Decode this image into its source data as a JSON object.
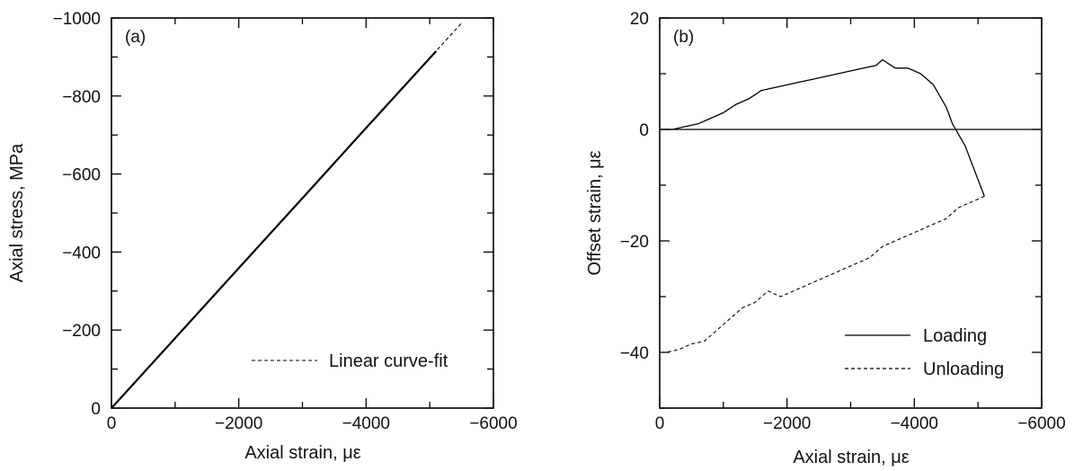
{
  "chart_data": [
    {
      "type": "line",
      "panel_label": "(a)",
      "xlabel": "Axial strain, με",
      "ylabel": "Axial stress, MPa",
      "xlim": [
        0,
        -6000
      ],
      "ylim": [
        0,
        -1000
      ],
      "x_ticks": [
        0,
        -2000,
        -4000,
        -6000
      ],
      "x_tick_labels": [
        "0",
        "−2000",
        "−4000",
        "−6000"
      ],
      "y_ticks": [
        0,
        -200,
        -400,
        -600,
        -800,
        -1000
      ],
      "y_tick_labels": [
        "0",
        "−200",
        "−400",
        "−600",
        "−800",
        "−1000"
      ],
      "grid": false,
      "legend_position": "bottom-right",
      "series": [
        {
          "style": "solid",
          "x": [
            0,
            -1000,
            -2000,
            -3000,
            -4000,
            -5100
          ],
          "y": [
            0,
            -179,
            -359,
            -538,
            -718,
            -915
          ]
        },
        {
          "name": "Linear curve-fit",
          "style": "dashed",
          "x": [
            0,
            -5500
          ],
          "y": [
            0,
            -987
          ]
        }
      ]
    },
    {
      "type": "line",
      "panel_label": "(b)",
      "xlabel": "Axial strain, με",
      "ylabel": "Offset strain, με",
      "xlim": [
        0,
        -6000
      ],
      "ylim": [
        -50,
        20
      ],
      "x_ticks": [
        0,
        -2000,
        -4000,
        -6000
      ],
      "x_tick_labels": [
        "0",
        "−2000",
        "−4000",
        "−6000"
      ],
      "y_ticks": [
        -40,
        -20,
        0,
        20
      ],
      "y_tick_labels": [
        "−40",
        "−20",
        "0",
        "20"
      ],
      "grid": false,
      "legend_position": "bottom-right",
      "reference_line_y": 0,
      "series": [
        {
          "name": "Loading",
          "style": "solid",
          "x": [
            0,
            -200,
            -400,
            -600,
            -800,
            -1000,
            -1200,
            -1400,
            -1600,
            -1800,
            -2000,
            -2200,
            -2400,
            -2600,
            -2800,
            -3000,
            -3200,
            -3400,
            -3500,
            -3700,
            -3900,
            -4100,
            -4300,
            -4500,
            -4600,
            -4700,
            -4800,
            -4900,
            -5000,
            -5100
          ],
          "y": [
            0,
            0,
            0.5,
            1,
            2,
            3,
            4.5,
            5.5,
            7,
            7.5,
            8,
            8.5,
            9,
            9.5,
            10,
            10.5,
            11,
            11.5,
            12.5,
            11,
            11,
            10,
            8,
            4,
            1,
            -1,
            -3,
            -6,
            -9,
            -12
          ]
        },
        {
          "name": "Unloading",
          "style": "dashed",
          "x": [
            -5100,
            -4900,
            -4700,
            -4500,
            -4300,
            -4100,
            -3900,
            -3700,
            -3500,
            -3300,
            -3100,
            -2900,
            -2700,
            -2500,
            -2300,
            -2100,
            -1900,
            -1700,
            -1500,
            -1300,
            -1100,
            -900,
            -700,
            -500,
            -300,
            -100,
            0
          ],
          "y": [
            -12,
            -13,
            -14,
            -16,
            -17,
            -18,
            -19,
            -20,
            -21,
            -23,
            -24,
            -25,
            -26,
            -27,
            -28,
            -29,
            -30,
            -29,
            -31,
            -32,
            -34,
            -36,
            -38,
            -38.5,
            -39.5,
            -40,
            -40
          ]
        }
      ]
    }
  ]
}
